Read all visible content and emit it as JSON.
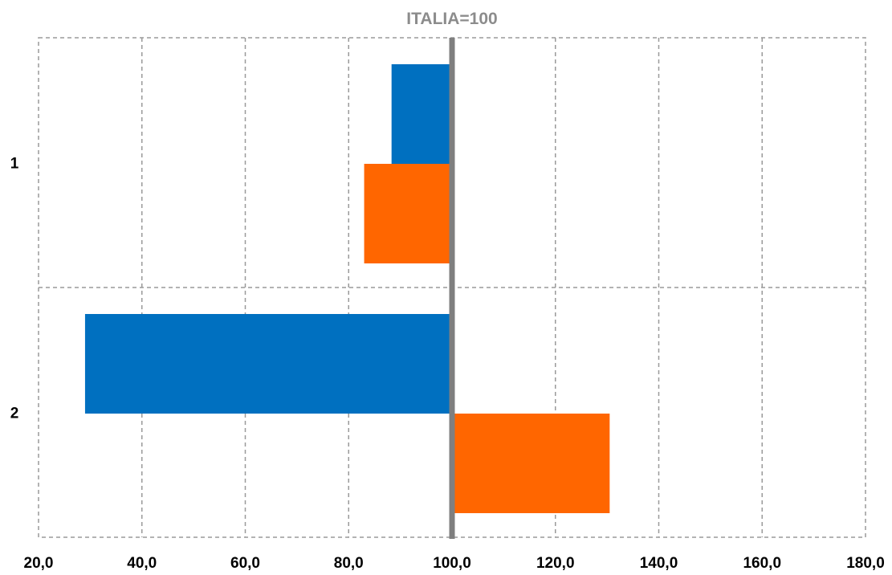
{
  "chart_data": {
    "type": "bar",
    "orientation": "horizontal",
    "title": "",
    "reference_line": {
      "value": 100,
      "label": "ITALIA=100",
      "color": "#7f7f7f"
    },
    "categories": [
      "1",
      "2"
    ],
    "series": [
      {
        "values": [
          88.3,
          29.0
        ],
        "color": "#0070c0"
      },
      {
        "values": [
          83.0,
          130.5
        ],
        "color": "#ff6600"
      }
    ],
    "xlim": [
      20,
      180
    ],
    "x_ticks": [
      "20,0",
      "40,0",
      "60,0",
      "80,0",
      "100,0",
      "120,0",
      "140,0",
      "160,0",
      "180,0"
    ],
    "x_tick_values": [
      20,
      40,
      60,
      80,
      100,
      120,
      140,
      160,
      180
    ],
    "grid": true,
    "legend": "none"
  }
}
